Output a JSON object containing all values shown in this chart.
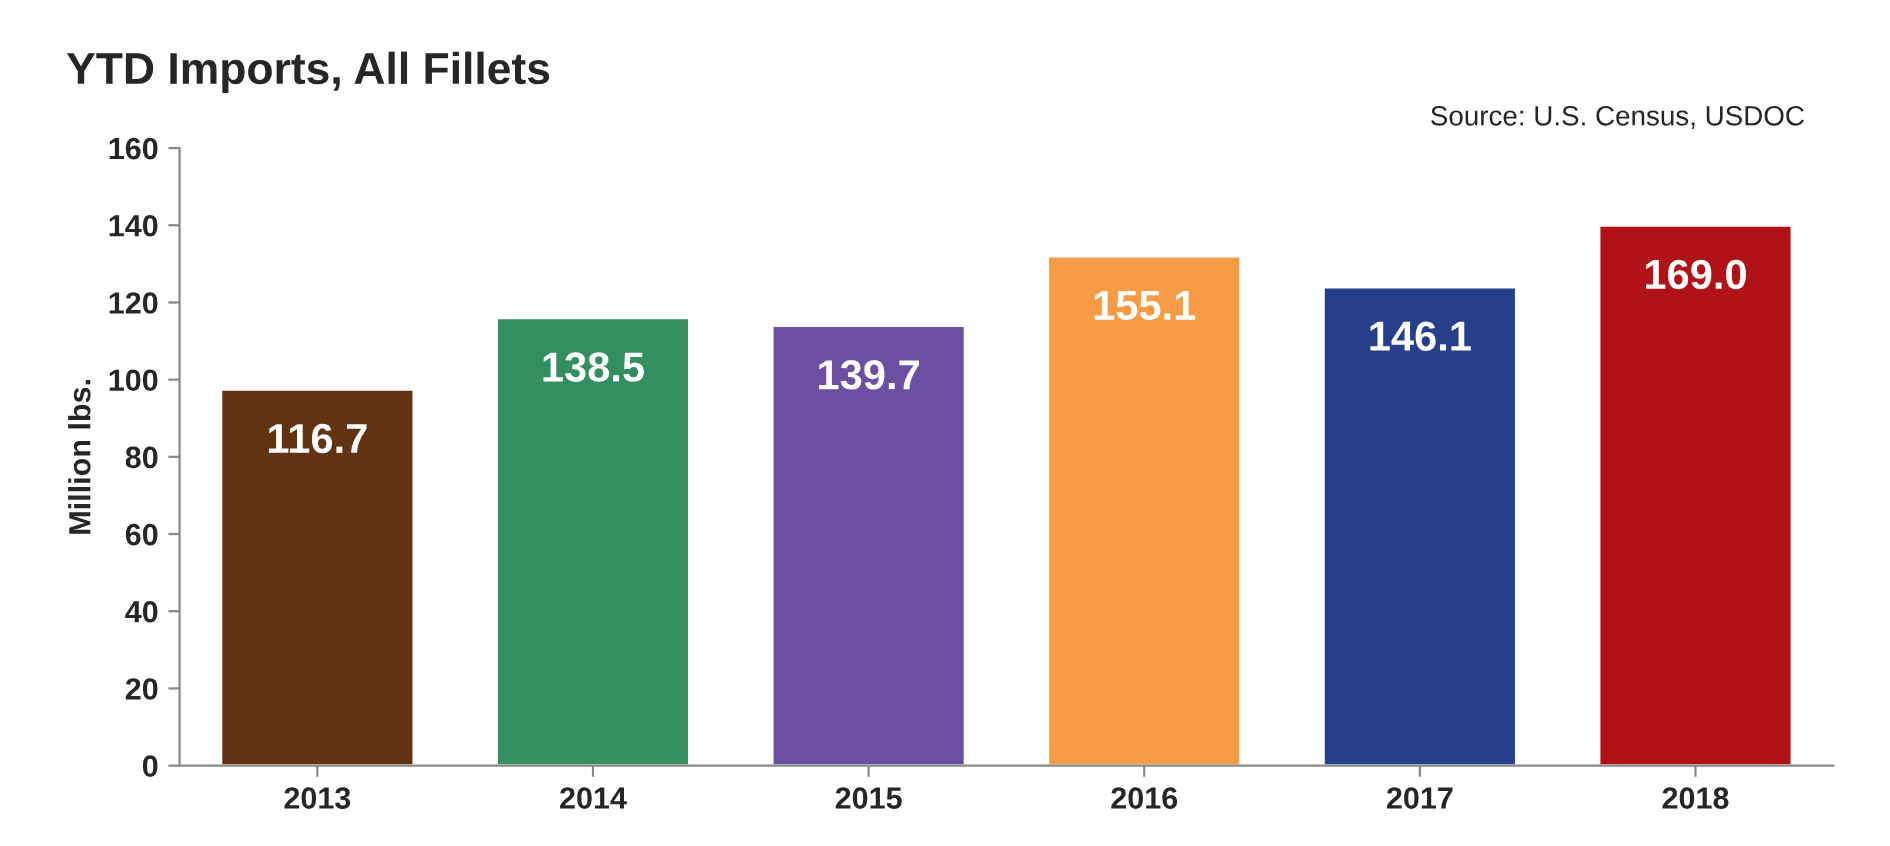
{
  "chart_data": {
    "type": "bar",
    "title": "YTD Imports, All Fillets",
    "ylabel": "Million lbs.",
    "annotations": [
      "Source: U.S. Census, USDOC",
      {
        "text": "116.7",
        "x": "2013",
        "y": 97.5
      },
      {
        "text": "138.5",
        "x": "2014",
        "y": 116
      },
      {
        "text": "139.7",
        "x": "2015",
        "y": 114
      },
      {
        "text": "155.1",
        "x": "2016",
        "y": 132
      },
      {
        "text": "146.1",
        "x": "2017",
        "y": 124
      },
      {
        "text": "169.0",
        "x": "2018",
        "y": 140
      }
    ],
    "categories": [
      "2013",
      "2014",
      "2015",
      "2016",
      "2017",
      "2018"
    ],
    "values": [
      97.5,
      116,
      114,
      132,
      124,
      140
    ],
    "colors": [
      "#633212",
      "#338f60",
      "#6b4fa1",
      "#f79b44",
      "#253f8b",
      "#b01218"
    ],
    "ylim": [
      0,
      160
    ],
    "yticks": [
      0,
      20,
      40,
      60,
      80,
      100,
      120,
      140,
      160
    ],
    "grid": false,
    "legend": false
  }
}
